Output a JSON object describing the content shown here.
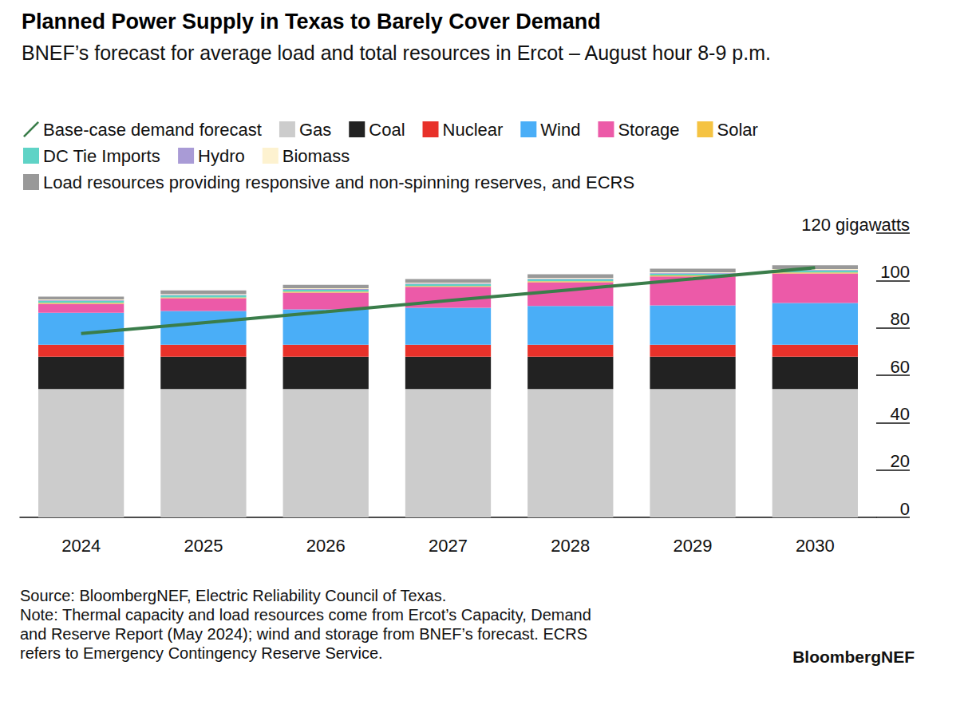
{
  "chart_data": {
    "type": "bar",
    "stacked": true,
    "grid": false,
    "title": "Planned Power Supply in Texas to Barely Cover Demand",
    "subtitle": "BNEF’s forecast for average load and total resources in Ercot – August hour 8-9 p.m.",
    "categories": [
      "2024",
      "2025",
      "2026",
      "2027",
      "2028",
      "2029",
      "2030"
    ],
    "ylim": [
      0,
      120
    ],
    "yticks": [
      0,
      20,
      40,
      60,
      80,
      100,
      {
        "value": 120,
        "label": "120 gigawatts"
      }
    ],
    "series": [
      {
        "name": "Base-case demand forecast",
        "type": "line",
        "color": "#3a7d4a",
        "values": [
          77.6,
          82.2,
          86.8,
          91.5,
          96.1,
          100.7,
          105.4
        ]
      },
      {
        "name": "Gas",
        "type": "bar",
        "color": "#cccccc",
        "values": [
          54.2,
          54.2,
          54.2,
          54.2,
          54.2,
          54.2,
          54.2
        ]
      },
      {
        "name": "Coal",
        "type": "bar",
        "color": "#222222",
        "values": [
          13.6,
          13.6,
          13.6,
          13.6,
          13.6,
          13.6,
          13.6
        ]
      },
      {
        "name": "Nuclear",
        "type": "bar",
        "color": "#e8312a",
        "values": [
          5.1,
          5.1,
          5.1,
          5.1,
          5.1,
          5.1,
          5.1
        ]
      },
      {
        "name": "Wind",
        "type": "bar",
        "color": "#4aaef7",
        "values": [
          13.5,
          14.2,
          14.9,
          15.6,
          16.3,
          16.6,
          17.6
        ]
      },
      {
        "name": "Storage",
        "type": "bar",
        "color": "#ec5aa8",
        "values": [
          3.8,
          5.4,
          7.1,
          8.8,
          10.1,
          12.2,
          12.5
        ]
      },
      {
        "name": "Solar",
        "type": "bar",
        "color": "#f5c342",
        "values": [
          0.4,
          0.4,
          0.4,
          0.4,
          0.4,
          0.4,
          0.4
        ]
      },
      {
        "name": "DC Tie Imports",
        "type": "bar",
        "color": "#5fd3c6",
        "values": [
          0.8,
          0.8,
          0.8,
          0.8,
          0.8,
          0.8,
          0.8
        ]
      },
      {
        "name": "Hydro",
        "type": "bar",
        "color": "#a99bd6",
        "values": [
          0.3,
          0.3,
          0.3,
          0.3,
          0.3,
          0.3,
          0.3
        ]
      },
      {
        "name": "Biomass",
        "type": "bar",
        "color": "#fdf2d0",
        "values": [
          0.3,
          0.3,
          0.3,
          0.3,
          0.3,
          0.3,
          0.3
        ]
      },
      {
        "name": "Load resources providing responsive and non-spinning reserves, and ECRS",
        "type": "bar",
        "color": "#999999",
        "values": [
          1.2,
          1.5,
          1.5,
          1.5,
          1.5,
          1.5,
          1.6
        ]
      }
    ],
    "source": "Source: BloombergNEF, Electric Reliability Council of Texas.",
    "note": [
      "Note: Thermal capacity and load resources come from Ercot’s Capacity, Demand",
      "and Reserve Report (May 2024); wind and storage from BNEF’s forecast. ECRS",
      "refers to Emergency Contingency Reserve Service."
    ],
    "branding": "BloombergNEF"
  }
}
